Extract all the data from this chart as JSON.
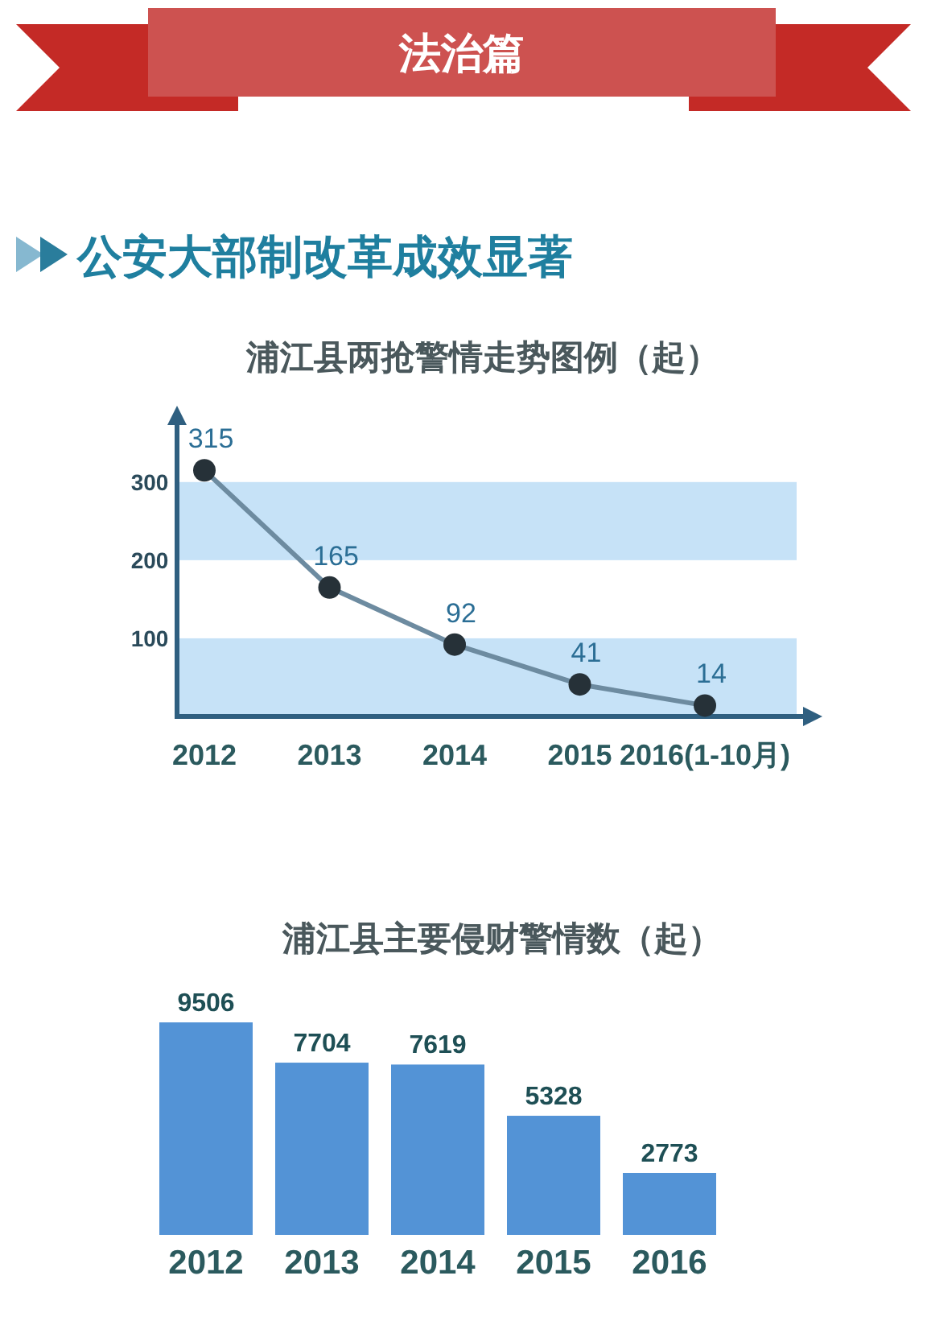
{
  "chart_data": [
    {
      "type": "line",
      "title": "浦江县两抢警情走势图例（起）",
      "annotations": [
        "法治篇",
        "公安大部制改革成效显著"
      ],
      "categories": [
        "2012",
        "2013",
        "2014",
        "2015",
        "2016(1-10月)"
      ],
      "series": [
        {
          "color": "#6d8ba0",
          "values": [
            315,
            165,
            92,
            41,
            14
          ]
        }
      ],
      "ylim": [
        0,
        375
      ],
      "yticks": [
        100,
        200,
        300
      ],
      "bands": [
        {
          "axis": "y",
          "from": 0,
          "to": 100,
          "color": "#c6e2f7"
        },
        {
          "axis": "y",
          "from": 200,
          "to": 300,
          "color": "#c6e2f7"
        }
      ],
      "data_labels": true,
      "marker": "circle"
    },
    {
      "type": "bar",
      "title": "浦江县主要侵财警情数（起）",
      "categories": [
        "2012",
        "2013",
        "2014",
        "2015",
        "2016"
      ],
      "values": [
        9506,
        7704,
        7619,
        5328,
        2773
      ],
      "color": "#5393d6",
      "data_labels": true
    }
  ]
}
